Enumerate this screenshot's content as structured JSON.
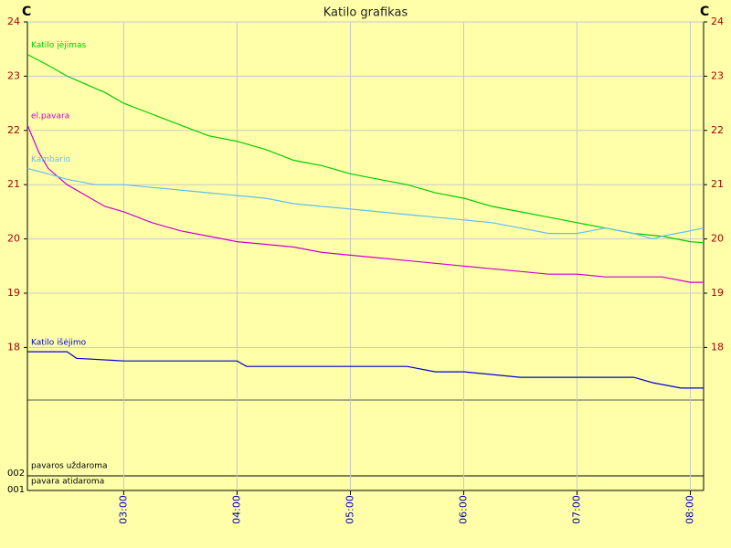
{
  "chart_data": {
    "type": "line",
    "title": "Katilo  grafikas",
    "y_unit": "C",
    "xlim": [
      129,
      487
    ],
    "xticks": [
      {
        "value": 180,
        "label": "03:00"
      },
      {
        "value": 240,
        "label": "04:00"
      },
      {
        "value": 300,
        "label": "05:00"
      },
      {
        "value": 360,
        "label": "06:00"
      },
      {
        "value": 420,
        "label": "07:00"
      },
      {
        "value": 480,
        "label": "08:00"
      }
    ],
    "ylim": [
      17.03,
      24
    ],
    "yticks": [
      18,
      19,
      20,
      21,
      22,
      23,
      24
    ],
    "grid": true,
    "series": [
      {
        "name": "Katilo įėjimas",
        "color": "#00cc00",
        "x": [
          129,
          140,
          150,
          160,
          170,
          180,
          195,
          210,
          225,
          240,
          255,
          270,
          285,
          300,
          315,
          330,
          345,
          360,
          375,
          390,
          405,
          420,
          435,
          450,
          465,
          480,
          487
        ],
        "values": [
          23.4,
          23.2,
          23.0,
          22.85,
          22.7,
          22.5,
          22.3,
          22.1,
          21.9,
          21.8,
          21.65,
          21.45,
          21.35,
          21.2,
          21.1,
          21.0,
          20.85,
          20.75,
          20.6,
          20.5,
          20.4,
          20.3,
          20.2,
          20.1,
          20.05,
          19.95,
          19.93
        ]
      },
      {
        "name": "el.pavara",
        "color": "#cc00cc",
        "x": [
          129,
          135,
          140,
          150,
          160,
          170,
          180,
          195,
          210,
          225,
          240,
          255,
          270,
          285,
          300,
          315,
          330,
          345,
          360,
          375,
          390,
          405,
          420,
          435,
          450,
          465,
          480,
          487
        ],
        "values": [
          22.1,
          21.6,
          21.3,
          21.0,
          20.8,
          20.6,
          20.5,
          20.3,
          20.15,
          20.05,
          19.95,
          19.9,
          19.85,
          19.75,
          19.7,
          19.65,
          19.6,
          19.55,
          19.5,
          19.45,
          19.4,
          19.35,
          19.35,
          19.3,
          19.3,
          19.3,
          19.2,
          19.2
        ]
      },
      {
        "name": "Kambario",
        "color": "#66bbee",
        "x": [
          129,
          140,
          150,
          165,
          180,
          195,
          210,
          225,
          240,
          255,
          270,
          285,
          300,
          315,
          330,
          345,
          360,
          375,
          390,
          405,
          420,
          435,
          450,
          460,
          465,
          480,
          487
        ],
        "values": [
          21.3,
          21.2,
          21.1,
          21.0,
          21.0,
          20.95,
          20.9,
          20.85,
          20.8,
          20.75,
          20.65,
          20.6,
          20.55,
          20.5,
          20.45,
          20.4,
          20.35,
          20.3,
          20.2,
          20.1,
          20.1,
          20.2,
          20.1,
          20.0,
          20.05,
          20.15,
          20.2
        ]
      },
      {
        "name": "Katilo išėjimo",
        "color": "#0000cc",
        "x": [
          129,
          150,
          155,
          180,
          240,
          245,
          330,
          345,
          360,
          390,
          450,
          460,
          475,
          487
        ],
        "values": [
          17.92,
          17.92,
          17.8,
          17.75,
          17.75,
          17.65,
          17.65,
          17.55,
          17.55,
          17.45,
          17.45,
          17.35,
          17.25,
          17.25
        ]
      }
    ]
  },
  "lower_panel": {
    "ticks": [
      "002",
      "001"
    ],
    "labels": [
      "pavaros uždaroma",
      "pavara atidaroma"
    ]
  }
}
